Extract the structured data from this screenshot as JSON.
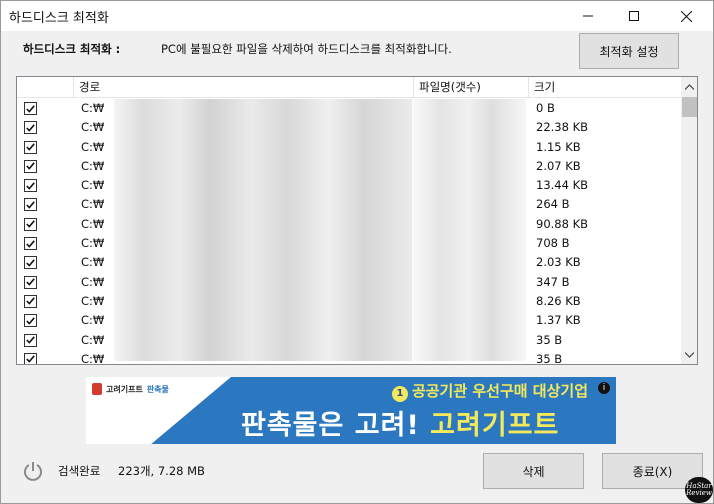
{
  "window": {
    "title": "하드디스크 최적화",
    "minimize_icon": "minimize-icon",
    "maximize_icon": "maximize-icon",
    "close_icon": "close-icon"
  },
  "info": {
    "label": "하드디스크 최적화 :",
    "text": "PC에 불필요한 파일을 삭제하여 하드디스크를 최적화합니다."
  },
  "buttons": {
    "settings": "최적화 설정",
    "delete": "삭제",
    "close": "종료(X)"
  },
  "table": {
    "headers": [
      "경로",
      "파일명(갯수)",
      "크기"
    ],
    "rows": [
      {
        "path": "C:₩",
        "size": "0 B"
      },
      {
        "path": "C:₩",
        "size": "22.38 KB"
      },
      {
        "path": "C:₩",
        "size": "1.15 KB"
      },
      {
        "path": "C:₩",
        "size": "2.07 KB"
      },
      {
        "path": "C:₩",
        "size": "13.44 KB"
      },
      {
        "path": "C:₩",
        "size": "264 B"
      },
      {
        "path": "C:₩",
        "size": "90.88 KB"
      },
      {
        "path": "C:₩",
        "size": "708 B"
      },
      {
        "path": "C:₩",
        "size": "2.03 KB"
      },
      {
        "path": "C:₩",
        "size": "347 B"
      },
      {
        "path": "C:₩",
        "size": "8.26 KB"
      },
      {
        "path": "C:₩",
        "size": "1.37 KB"
      },
      {
        "path": "C:₩",
        "size": "35 B"
      },
      {
        "path": "C:₩",
        "size": "35 B"
      }
    ]
  },
  "banner": {
    "logo_text": "고려기프트",
    "logo_accent": "판촉물",
    "top_badge": "1",
    "top_text": "공공기관 우선구매 대상기업",
    "main_text": "판촉물은 고려!",
    "main_highlight": "고려기프트",
    "info_icon": "i"
  },
  "status": {
    "label": "검색완료",
    "value": "223개, 7.28 MB"
  },
  "watermark": {
    "line1": "HaStar",
    "line2": "Review"
  },
  "colors": {
    "banner_blue": "#2b78c0",
    "banner_yellow": "#f4e95a"
  }
}
